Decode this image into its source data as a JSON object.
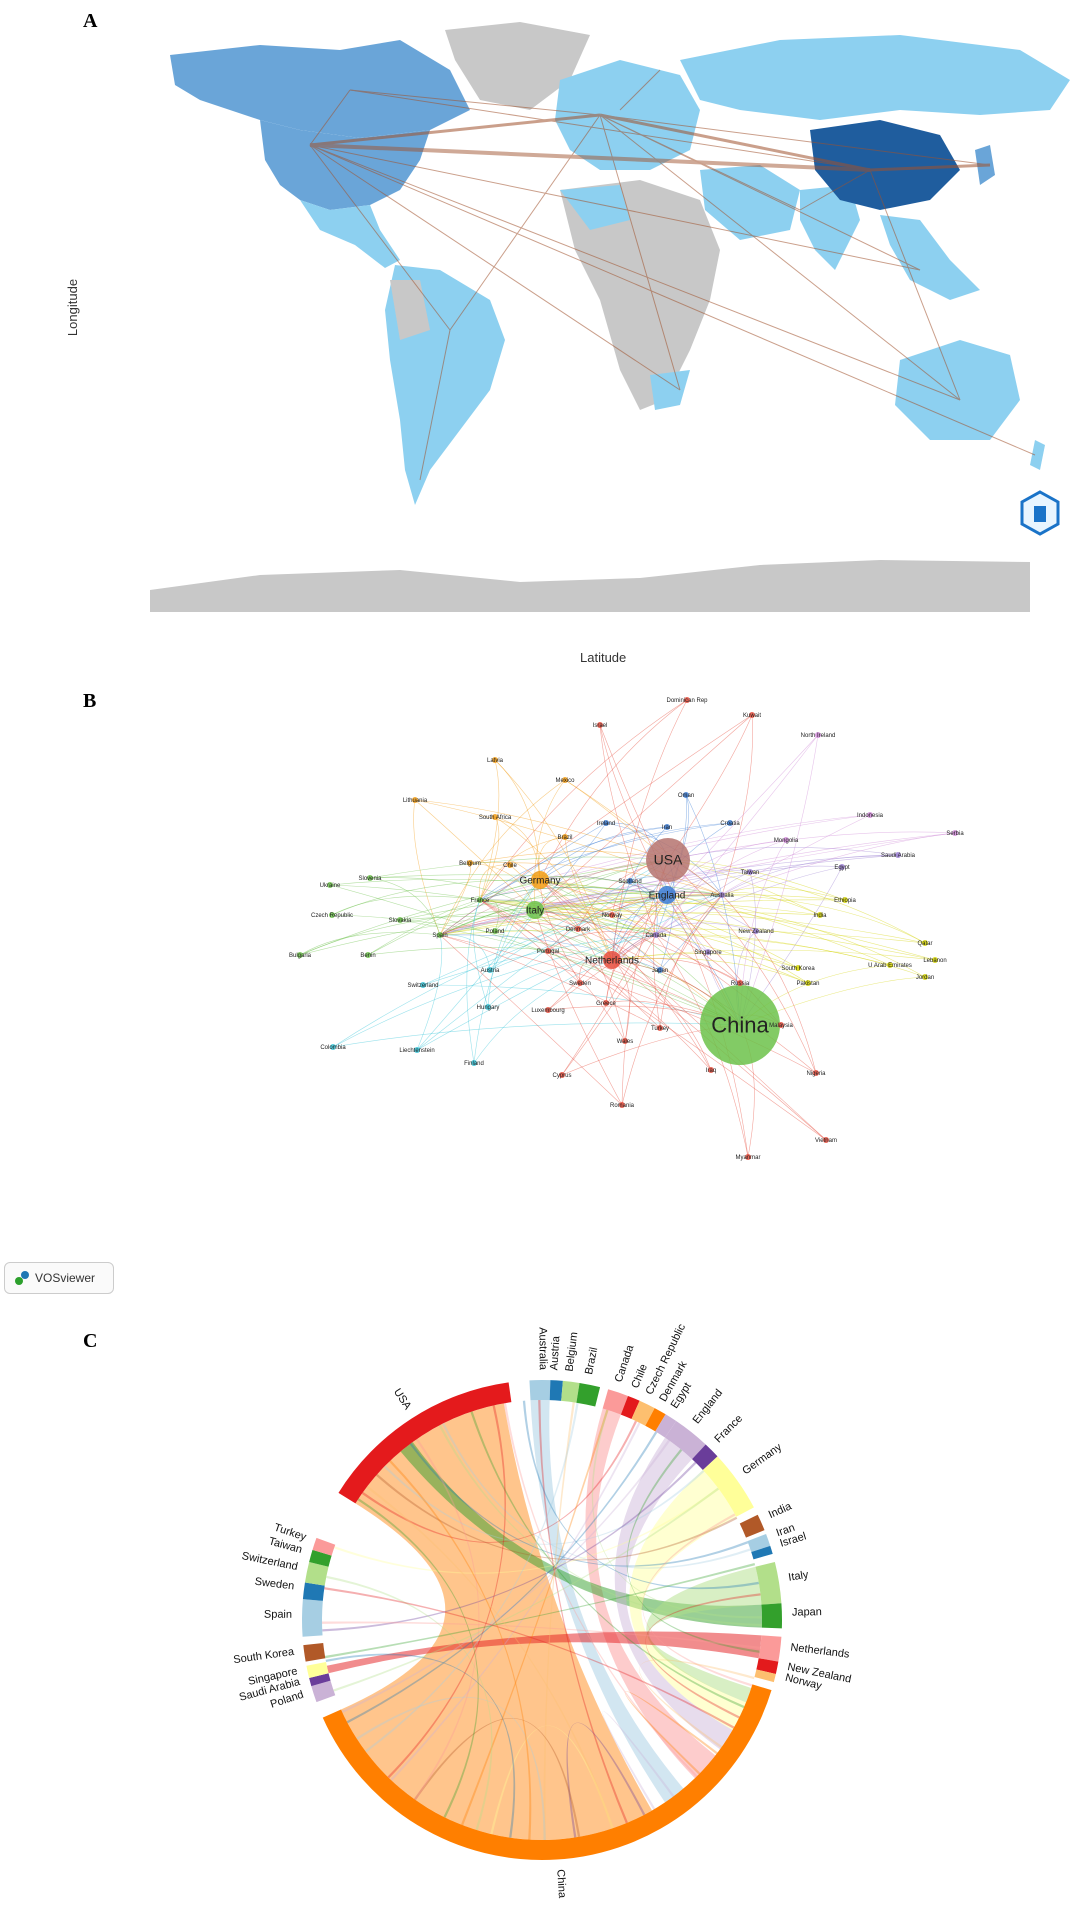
{
  "panels": {
    "a": {
      "letter": "A",
      "xlabel": "Latitude",
      "ylabel": "Longitude"
    },
    "b": {
      "letter": "B",
      "brand": "VOSviewer"
    },
    "c": {
      "letter": "C"
    }
  },
  "colors": {
    "land_gray": "#c8c8c8",
    "light_blue": "#8dd0f0",
    "mid_blue": "#6aa5d8",
    "dark_blue": "#1f5d9e",
    "link_brown": "#a0522d",
    "usa_red": "#e41a1c",
    "china_orange": "#ff7f00"
  },
  "map_countries": [
    {
      "name": "USA",
      "color": "mid_blue"
    },
    {
      "name": "China",
      "color": "dark_blue"
    },
    {
      "name": "Canada",
      "color": "mid_blue"
    },
    {
      "name": "Australia",
      "color": "light_blue"
    },
    {
      "name": "Russia",
      "color": "light_blue"
    },
    {
      "name": "Brazil",
      "color": "light_blue"
    }
  ],
  "network_nodes": [
    {
      "label": "USA",
      "size": "large",
      "cluster": "brown"
    },
    {
      "label": "China",
      "size": "xlarge",
      "cluster": "green"
    },
    {
      "label": "Germany",
      "size": "medium",
      "cluster": "orange"
    },
    {
      "label": "Italy",
      "size": "medium",
      "cluster": "green"
    },
    {
      "label": "England",
      "size": "medium",
      "cluster": "blue"
    },
    {
      "label": "Netherlands",
      "size": "medium",
      "cluster": "red"
    },
    {
      "label": "Australia",
      "size": "small",
      "cluster": "purple"
    },
    {
      "label": "Canada",
      "size": "small",
      "cluster": "purple"
    },
    {
      "label": "France",
      "size": "small",
      "cluster": "green"
    },
    {
      "label": "Spain",
      "size": "small",
      "cluster": "green"
    },
    {
      "label": "Sweden",
      "size": "small",
      "cluster": "red"
    },
    {
      "label": "Taiwan",
      "size": "small",
      "cluster": "purple"
    },
    {
      "label": "India",
      "size": "small",
      "cluster": "yellow"
    },
    {
      "label": "South Korea",
      "size": "small",
      "cluster": "yellow"
    },
    {
      "label": "New Zealand",
      "size": "small",
      "cluster": "purple"
    },
    {
      "label": "Belgium",
      "size": "small",
      "cluster": "orange"
    },
    {
      "label": "Brazil",
      "size": "small",
      "cluster": "orange"
    },
    {
      "label": "Switzerland",
      "size": "small",
      "cluster": "cyan"
    },
    {
      "label": "Denmark",
      "size": "small",
      "cluster": "red"
    },
    {
      "label": "Poland",
      "size": "small",
      "cluster": "green"
    },
    {
      "label": "Singapore",
      "size": "small",
      "cluster": "purple"
    },
    {
      "label": "Japan",
      "size": "small",
      "cluster": "blue"
    },
    {
      "label": "Iran",
      "size": "small",
      "cluster": "blue"
    },
    {
      "label": "Scotland",
      "size": "small",
      "cluster": "blue"
    },
    {
      "label": "Norway",
      "size": "small",
      "cluster": "red"
    },
    {
      "label": "Russia",
      "size": "small",
      "cluster": "red"
    },
    {
      "label": "Greece",
      "size": "small",
      "cluster": "red"
    },
    {
      "label": "Austria",
      "size": "small",
      "cluster": "cyan"
    },
    {
      "label": "Hungary",
      "size": "small",
      "cluster": "cyan"
    },
    {
      "label": "Luxembourg",
      "size": "small",
      "cluster": "red"
    },
    {
      "label": "Turkey",
      "size": "small",
      "cluster": "red"
    },
    {
      "label": "Wales",
      "size": "small",
      "cluster": "red"
    },
    {
      "label": "Portugal",
      "size": "small",
      "cluster": "red"
    },
    {
      "label": "Ireland",
      "size": "small",
      "cluster": "blue"
    },
    {
      "label": "Chile",
      "size": "small",
      "cluster": "orange"
    },
    {
      "label": "Egypt",
      "size": "small",
      "cluster": "purple"
    },
    {
      "label": "Saudi Arabia",
      "size": "small",
      "cluster": "purple"
    },
    {
      "label": "Pakistan",
      "size": "small",
      "cluster": "yellow"
    },
    {
      "label": "U Arab Emirates",
      "size": "small",
      "cluster": "yellow"
    },
    {
      "label": "Qatar",
      "size": "small",
      "cluster": "yellow"
    },
    {
      "label": "Lebanon",
      "size": "small",
      "cluster": "yellow"
    },
    {
      "label": "Jordan",
      "size": "small",
      "cluster": "yellow"
    },
    {
      "label": "Ethiopia",
      "size": "small",
      "cluster": "yellow"
    },
    {
      "label": "Indonesia",
      "size": "small",
      "cluster": "pink"
    },
    {
      "label": "Mongolia",
      "size": "small",
      "cluster": "pink"
    },
    {
      "label": "Serbia",
      "size": "small",
      "cluster": "pink"
    },
    {
      "label": "Croatia",
      "size": "small",
      "cluster": "blue"
    },
    {
      "label": "Oman",
      "size": "small",
      "cluster": "blue"
    },
    {
      "label": "Mexico",
      "size": "small",
      "cluster": "orange"
    },
    {
      "label": "Latvia",
      "size": "small",
      "cluster": "orange"
    },
    {
      "label": "Israel",
      "size": "small",
      "cluster": "red"
    },
    {
      "label": "Kuwait",
      "size": "small",
      "cluster": "red"
    },
    {
      "label": "Dominican Rep",
      "size": "small",
      "cluster": "red"
    },
    {
      "label": "North Ireland",
      "size": "small",
      "cluster": "pink"
    },
    {
      "label": "Lithuania",
      "size": "small",
      "cluster": "orange"
    },
    {
      "label": "South Africa",
      "size": "small",
      "cluster": "orange"
    },
    {
      "label": "Ukraine",
      "size": "small",
      "cluster": "green"
    },
    {
      "label": "Slovenia",
      "size": "small",
      "cluster": "green"
    },
    {
      "label": "Czech Republic",
      "size": "small",
      "cluster": "green"
    },
    {
      "label": "Slovakia",
      "size": "small",
      "cluster": "green"
    },
    {
      "label": "Bulgaria",
      "size": "small",
      "cluster": "green"
    },
    {
      "label": "Benin",
      "size": "small",
      "cluster": "green"
    },
    {
      "label": "Colombia",
      "size": "small",
      "cluster": "cyan"
    },
    {
      "label": "Liechtenstein",
      "size": "small",
      "cluster": "cyan"
    },
    {
      "label": "Finland",
      "size": "small",
      "cluster": "cyan"
    },
    {
      "label": "Cyprus",
      "size": "small",
      "cluster": "red"
    },
    {
      "label": "Romania",
      "size": "small",
      "cluster": "red"
    },
    {
      "label": "Iraq",
      "size": "small",
      "cluster": "red"
    },
    {
      "label": "Malaysia",
      "size": "small",
      "cluster": "red"
    },
    {
      "label": "Nigeria",
      "size": "small",
      "cluster": "red"
    },
    {
      "label": "Vietnam",
      "size": "small",
      "cluster": "red"
    },
    {
      "label": "Myanmar",
      "size": "small",
      "cluster": "red"
    }
  ],
  "chord_segments": [
    {
      "label": "USA",
      "color": "#e41a1c"
    },
    {
      "label": "Australia",
      "color": "#a6cee3"
    },
    {
      "label": "Austria",
      "color": "#1f78b4"
    },
    {
      "label": "Belgium",
      "color": "#b2df8a"
    },
    {
      "label": "Brazil",
      "color": "#33a02c"
    },
    {
      "label": "Canada",
      "color": "#fb9a99"
    },
    {
      "label": "Chile",
      "color": "#e31a1c"
    },
    {
      "label": "Czech Republic",
      "color": "#fdbf6f"
    },
    {
      "label": "Denmark",
      "color": "#ff7f00"
    },
    {
      "label": "Egypt",
      "color": "#cab2d6"
    },
    {
      "label": "England",
      "color": "#cab2d6"
    },
    {
      "label": "France",
      "color": "#6a3d9a"
    },
    {
      "label": "Germany",
      "color": "#ffff99"
    },
    {
      "label": "India",
      "color": "#b15928"
    },
    {
      "label": "Iran",
      "color": "#a6cee3"
    },
    {
      "label": "Israel",
      "color": "#1f78b4"
    },
    {
      "label": "Italy",
      "color": "#b2df8a"
    },
    {
      "label": "Japan",
      "color": "#33a02c"
    },
    {
      "label": "Netherlands",
      "color": "#fb9a99"
    },
    {
      "label": "New Zealand",
      "color": "#e31a1c"
    },
    {
      "label": "Norway",
      "color": "#fdbf6f"
    },
    {
      "label": "China",
      "color": "#ff7f00"
    },
    {
      "label": "Poland",
      "color": "#cab2d6"
    },
    {
      "label": "Saudi Arabia",
      "color": "#6a3d9a"
    },
    {
      "label": "Singapore",
      "color": "#ffff99"
    },
    {
      "label": "South Korea",
      "color": "#b15928"
    },
    {
      "label": "Spain",
      "color": "#a6cee3"
    },
    {
      "label": "Sweden",
      "color": "#1f78b4"
    },
    {
      "label": "Switzerland",
      "color": "#b2df8a"
    },
    {
      "label": "Taiwan",
      "color": "#33a02c"
    },
    {
      "label": "Turkey",
      "color": "#fb9a99"
    }
  ]
}
